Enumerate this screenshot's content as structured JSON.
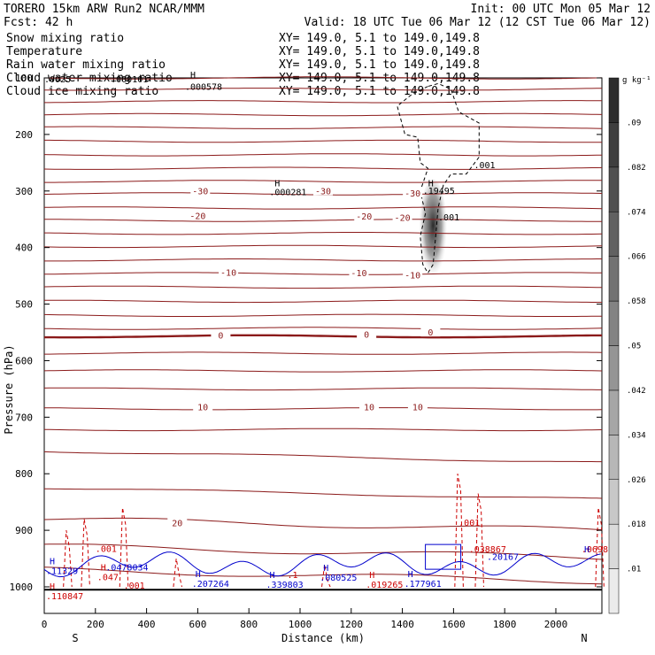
{
  "header": {
    "line1_left": "TORERO  15km ARW   Run2     NCAR/MMM",
    "line1_right": "Init: 00 UTC Mon 05 Mar 12",
    "line2_left": "Fcst:   42 h",
    "line2_right": "Valid: 18 UTC Tue 06 Mar 12 (12 CST Tue 06 Mar 12)"
  },
  "fields": [
    {
      "name": "Snow mixing ratio",
      "xy": "XY= 149.0,  5.1 to 149.0,149.8",
      "color": "#000000"
    },
    {
      "name": "Temperature",
      "xy": "XY= 149.0,  5.1 to 149.0,149.8",
      "color": "#cc0000"
    },
    {
      "name": "Rain water mixing ratio",
      "xy": "XY= 149.0,  5.1 to 149.0,149.8",
      "color": "#cc0000"
    },
    {
      "name": "Cloud water mixing ratio",
      "xy": "XY= 149.0,  5.1 to 149.0,149.8",
      "color": "#0000cc"
    },
    {
      "name": "Cloud ice mixing ratio",
      "xy": "XY= 149.0,  5.1 to 149.0,149.8",
      "color": "#000000"
    }
  ],
  "chart_data": {
    "type": "contour",
    "xlabel": "Distance (km)",
    "ylabel": "Pressure (hPa)",
    "xlim": [
      0,
      2180
    ],
    "ylim": [
      1000,
      100
    ],
    "x_ticks": [
      0,
      200,
      400,
      600,
      800,
      1000,
      1200,
      1400,
      1600,
      1800,
      2000
    ],
    "y_ticks": [
      100,
      200,
      300,
      400,
      500,
      600,
      700,
      800,
      900,
      1000
    ],
    "y_tick_labels": [
      "100",
      "200",
      "300",
      "400",
      "500",
      "600",
      "700",
      "800",
      "900",
      "1000"
    ],
    "end_labels": {
      "left": "S",
      "right": "N"
    },
    "temperature_contours": [
      {
        "pressure": 100,
        "label": ""
      },
      {
        "pressure": 120,
        "label": ""
      },
      {
        "pressure": 142,
        "label": ""
      },
      {
        "pressure": 165,
        "label": ""
      },
      {
        "pressure": 188,
        "label": ""
      },
      {
        "pressure": 212,
        "label": ""
      },
      {
        "pressure": 236,
        "label": ""
      },
      {
        "pressure": 260,
        "label": ""
      },
      {
        "pressure": 283,
        "label": ""
      },
      {
        "pressure": 305,
        "label": "-30"
      },
      {
        "pressure": 330,
        "label": ""
      },
      {
        "pressure": 352,
        "label": "-20"
      },
      {
        "pressure": 375,
        "label": ""
      },
      {
        "pressure": 398,
        "label": ""
      },
      {
        "pressure": 422,
        "label": ""
      },
      {
        "pressure": 446,
        "label": "-10"
      },
      {
        "pressure": 470,
        "label": ""
      },
      {
        "pressure": 495,
        "label": ""
      },
      {
        "pressure": 520,
        "label": ""
      },
      {
        "pressure": 543,
        "label": ""
      },
      {
        "pressure": 557,
        "label": "0"
      },
      {
        "pressure": 587,
        "label": ""
      },
      {
        "pressure": 618,
        "label": ""
      },
      {
        "pressure": 650,
        "label": ""
      },
      {
        "pressure": 685,
        "label": "10"
      },
      {
        "pressure": 722,
        "label": ""
      },
      {
        "pressure": 770,
        "label": ""
      },
      {
        "pressure": 835,
        "label": ""
      },
      {
        "pressure": 890,
        "label": "20"
      },
      {
        "pressure": 938,
        "label": ""
      },
      {
        "pressure": 980,
        "label": ""
      }
    ],
    "temperature_labels": [
      {
        "x": 610,
        "p": 301,
        "text": "-30"
      },
      {
        "x": 1090,
        "p": 301,
        "text": "-30"
      },
      {
        "x": 1440,
        "p": 305,
        "text": "-30"
      },
      {
        "x": 600,
        "p": 345,
        "text": "-20"
      },
      {
        "x": 1250,
        "p": 346,
        "text": "-20"
      },
      {
        "x": 1400,
        "p": 348,
        "text": "-20"
      },
      {
        "x": 720,
        "p": 445,
        "text": "-10"
      },
      {
        "x": 1230,
        "p": 446,
        "text": "-10"
      },
      {
        "x": 1440,
        "p": 450,
        "text": "-10"
      },
      {
        "x": 690,
        "p": 556,
        "text": "0"
      },
      {
        "x": 1260,
        "p": 555,
        "text": "0"
      },
      {
        "x": 1510,
        "p": 551,
        "text": "0"
      },
      {
        "x": 620,
        "p": 683,
        "text": "10"
      },
      {
        "x": 1270,
        "p": 683,
        "text": "10"
      },
      {
        "x": 1460,
        "p": 683,
        "text": "10"
      },
      {
        "x": 520,
        "p": 888,
        "text": "20"
      }
    ],
    "max_markers": [
      {
        "x": 0,
        "p": 108,
        "h": "",
        "text": ".0025",
        "color": "#000000"
      },
      {
        "x": 260,
        "p": 108,
        "h": "",
        "text": ".000101",
        "color": "#000000"
      },
      {
        "x": 550,
        "p": 100,
        "h": "H",
        "text": "",
        "color": "#000000"
      },
      {
        "x": 550,
        "p": 121,
        "h": "",
        "text": ".000578",
        "color": "#000000"
      },
      {
        "x": 880,
        "p": 292,
        "h": "H",
        "text": "",
        "color": "#000000"
      },
      {
        "x": 880,
        "p": 307,
        "h": "",
        "text": ".000281",
        "color": "#000000"
      },
      {
        "x": 1480,
        "p": 292,
        "h": "H",
        "text": "",
        "color": "#000000"
      },
      {
        "x": 1480,
        "p": 305,
        "h": "",
        "text": ".19495",
        "color": "#000000"
      },
      {
        "x": 1680,
        "p": 260,
        "h": "",
        "text": ".001",
        "color": "#000000"
      },
      {
        "x": 1540,
        "p": 352,
        "h": "",
        "text": ".001",
        "color": "#000000"
      },
      {
        "x": 1620,
        "p": 892,
        "h": "",
        "text": ".001",
        "color": "#cc0000"
      },
      {
        "x": 200,
        "p": 938,
        "h": "",
        "text": ".001",
        "color": "#cc0000"
      },
      {
        "x": 310,
        "p": 1003,
        "h": "",
        "text": ".001",
        "color": "#cc0000"
      },
      {
        "x": 1660,
        "p": 939,
        "h": "",
        "text": ".038867",
        "color": "#cc0000"
      },
      {
        "x": 2100,
        "p": 939,
        "h": "",
        "text": ".0698",
        "color": "#cc0000"
      },
      {
        "x": 0,
        "p": 1005,
        "h": "H",
        "text": ".110847",
        "color": "#cc0000"
      },
      {
        "x": 0,
        "p": 960,
        "h": "H",
        "text": ".11329",
        "color": "#0000cc"
      },
      {
        "x": 200,
        "p": 971,
        "h": "H",
        "text": ".047",
        "color": "#cc0000"
      },
      {
        "x": 240,
        "p": 971,
        "h": "",
        "text": ".0478034",
        "color": "#0000cc"
      },
      {
        "x": 570,
        "p": 983,
        "h": "H",
        "text": ".207264",
        "color": "#0000cc"
      },
      {
        "x": 860,
        "p": 984,
        "h": "H",
        "text": ".339803",
        "color": "#0000cc"
      },
      {
        "x": 950,
        "p": 984,
        "h": "",
        "text": ".1",
        "color": "#cc0000"
      },
      {
        "x": 1070,
        "p": 972,
        "h": "H",
        "text": ".080525",
        "color": "#0000cc"
      },
      {
        "x": 1250,
        "p": 984,
        "h": "H",
        "text": ".019265",
        "color": "#cc0000"
      },
      {
        "x": 1400,
        "p": 983,
        "h": "H",
        "text": ".177961",
        "color": "#0000cc"
      },
      {
        "x": 1730,
        "p": 952,
        "h": "",
        "text": ".20167",
        "color": "#0000cc"
      },
      {
        "x": 2090,
        "p": 939,
        "h": "H",
        "text": "",
        "color": "#0000cc"
      }
    ],
    "colorbar": {
      "unit": "g kg⁻¹",
      "levels": [
        ".01",
        ".018",
        ".026",
        ".034",
        ".042",
        ".05",
        ".058",
        ".066",
        ".074",
        ".082",
        ".09"
      ]
    }
  }
}
